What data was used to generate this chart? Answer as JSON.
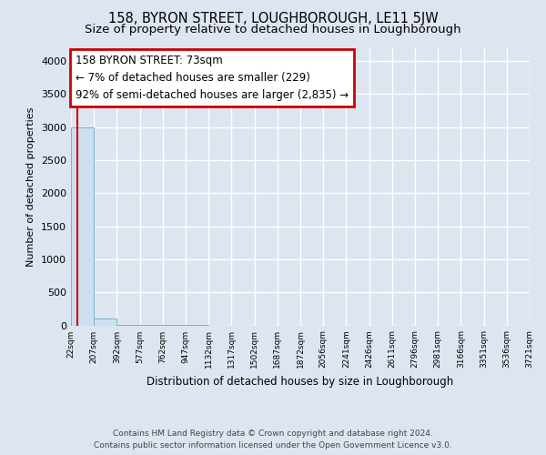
{
  "title": "158, BYRON STREET, LOUGHBOROUGH, LE11 5JW",
  "subtitle": "Size of property relative to detached houses in Loughborough",
  "xlabel": "Distribution of detached houses by size in Loughborough",
  "ylabel": "Number of detached properties",
  "xlabels": [
    "22sqm",
    "207sqm",
    "392sqm",
    "577sqm",
    "762sqm",
    "947sqm",
    "1132sqm",
    "1317sqm",
    "1502sqm",
    "1687sqm",
    "1872sqm",
    "2056sqm",
    "2241sqm",
    "2426sqm",
    "2611sqm",
    "2796sqm",
    "2981sqm",
    "3166sqm",
    "3351sqm",
    "3536sqm",
    "3721sqm"
  ],
  "bar_values": [
    3000,
    110,
    2,
    1,
    1,
    1,
    0,
    0,
    0,
    0,
    0,
    0,
    0,
    0,
    0,
    0,
    0,
    0,
    0,
    0
  ],
  "bar_color": "#cce0f0",
  "bar_edge_color": "#7aaed0",
  "ylim": [
    0,
    4200
  ],
  "yticks": [
    0,
    500,
    1000,
    1500,
    2000,
    2500,
    3000,
    3500,
    4000
  ],
  "annotation_line1": "158 BYRON STREET: 73sqm",
  "annotation_line2": "← 7% of detached houses are smaller (229)",
  "annotation_line3": "92% of semi-detached houses are larger (2,835) →",
  "annotation_box_color": "#ffffff",
  "annotation_box_edge": "#cc0000",
  "footer_line1": "Contains HM Land Registry data © Crown copyright and database right 2024.",
  "footer_line2": "Contains public sector information licensed under the Open Government Licence v3.0.",
  "bg_color": "#dde5f0",
  "plot_bg_color": "#dde5f0",
  "grid_color": "#ffffff",
  "title_fontsize": 10.5,
  "subtitle_fontsize": 9.5,
  "ylabel_text": "Number of detached properties"
}
